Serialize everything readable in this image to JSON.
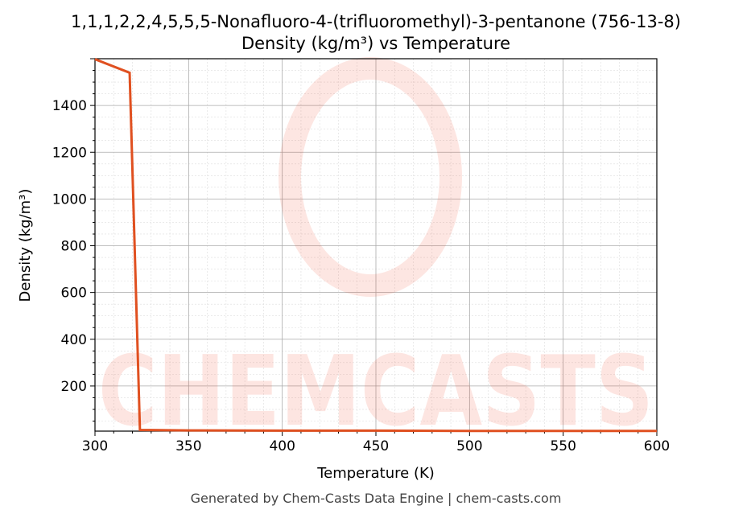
{
  "chart_data": {
    "type": "line",
    "title": "1,1,1,2,2,4,5,5,5-Nonafluoro-4-(trifluoromethyl)-3-pentanone (756-13-8)",
    "subtitle": "Density (kg/m³) vs Temperature",
    "xlabel": "Temperature (K)",
    "ylabel": "Density (kg/m³)",
    "xlim": [
      300,
      600
    ],
    "ylim": [
      7,
      1600
    ],
    "xticks": [
      300,
      350,
      400,
      450,
      500,
      550,
      600
    ],
    "yticks": [
      200,
      400,
      600,
      800,
      1000,
      1200,
      1400
    ],
    "grid": true,
    "line_color": "#e05020",
    "series": [
      {
        "x": [
          300,
          318.5,
          324,
          350,
          400,
          450,
          500,
          550,
          600
        ],
        "y": [
          1598,
          1540,
          12,
          10,
          9,
          9,
          8,
          8,
          8
        ]
      }
    ]
  },
  "watermark": "CHEMCASTS",
  "footer": "Generated by Chem-Casts Data Engine | chem-casts.com"
}
